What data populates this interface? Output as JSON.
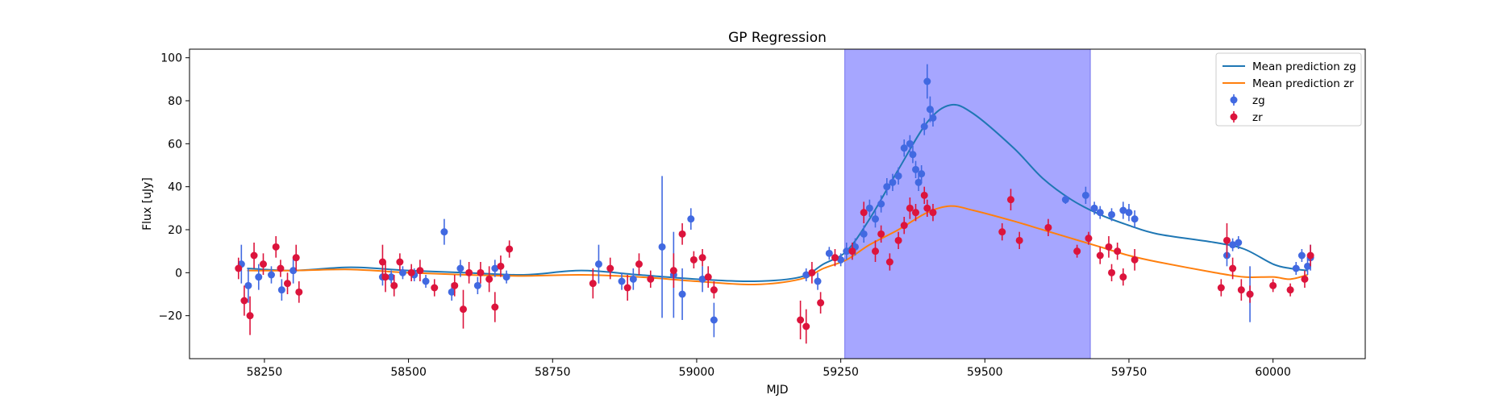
{
  "chart_data": {
    "type": "scatter",
    "title": "GP Regression",
    "xlabel": "MJD",
    "ylabel": "Flux [uJy]",
    "xlim": [
      58120,
      60160
    ],
    "ylim": [
      -40,
      104
    ],
    "xticks": [
      58250,
      58500,
      58750,
      59000,
      59250,
      59500,
      59750,
      60000
    ],
    "yticks": [
      -20,
      0,
      20,
      40,
      60,
      80,
      100
    ],
    "grid": false,
    "legend_position": "top-right",
    "shaded_region": {
      "x": [
        59257,
        59683
      ],
      "color": "#a6a6ff"
    },
    "colors": {
      "zg_line": "#1f77b4",
      "zr_line": "#ff7f0e",
      "zg_points": "#4169e1",
      "zr_points": "#dc143c"
    },
    "series": [
      {
        "name": "Mean prediction zg",
        "kind": "line",
        "color": "#1f77b4",
        "x": [
          58220,
          58300,
          58400,
          58500,
          58600,
          58700,
          58800,
          58900,
          59000,
          59100,
          59180,
          59220,
          59260,
          59300,
          59350,
          59400,
          59440,
          59480,
          59550,
          59600,
          59650,
          59700,
          59750,
          59800,
          59900,
          59950,
          60000,
          60030,
          60060
        ],
        "y": [
          2,
          1,
          2.5,
          1,
          0,
          -1,
          1,
          -1,
          -3,
          -4,
          -2,
          4,
          10,
          25,
          48,
          70,
          78,
          74,
          58,
          44,
          34,
          27,
          22,
          18,
          14,
          11,
          4,
          2,
          1
        ]
      },
      {
        "name": "Mean prediction zr",
        "kind": "line",
        "color": "#ff7f0e",
        "x": [
          58220,
          58300,
          58400,
          58500,
          58600,
          58700,
          58800,
          58900,
          59000,
          59100,
          59180,
          59220,
          59260,
          59300,
          59350,
          59400,
          59440,
          59480,
          59550,
          59600,
          59650,
          59700,
          59750,
          59800,
          59900,
          59950,
          60000,
          60030,
          60060
        ],
        "y": [
          1,
          1,
          1.5,
          0,
          -1,
          -1.5,
          -1,
          -2,
          -4,
          -5.5,
          -3,
          2,
          6,
          13,
          20,
          28,
          31,
          29,
          24,
          20,
          16,
          12,
          8,
          5,
          0,
          -2,
          -2,
          -3,
          -1
        ]
      },
      {
        "name": "zg",
        "kind": "errorbar",
        "color": "#4169e1",
        "x": [
          58210,
          58222,
          58240,
          58262,
          58280,
          58300,
          58455,
          58470,
          58490,
          58510,
          58530,
          58562,
          58575,
          58590,
          58620,
          58650,
          58670,
          58830,
          58870,
          58890,
          58940,
          58960,
          58975,
          58990,
          59010,
          59030,
          59190,
          59210,
          59230,
          59250,
          59260,
          59275,
          59290,
          59300,
          59310,
          59320,
          59330,
          59340,
          59350,
          59360,
          59370,
          59375,
          59380,
          59385,
          59390,
          59395,
          59400,
          59405,
          59410,
          59640,
          59675,
          59690,
          59700,
          59720,
          59740,
          59750,
          59760,
          59920,
          59930,
          59940,
          59960,
          60040,
          60050,
          60060,
          60065
        ],
        "y": [
          4,
          -6,
          -2,
          -1,
          -8,
          1,
          -2,
          -2,
          0,
          -1,
          -4,
          19,
          -9,
          2,
          -6,
          2,
          -2,
          4,
          -4,
          -3,
          12,
          -1,
          -10,
          25,
          -3,
          -22,
          -1,
          -4,
          9,
          6,
          10,
          12,
          18,
          30,
          25,
          32,
          40,
          42,
          45,
          58,
          60,
          55,
          48,
          42,
          46,
          68,
          89,
          76,
          72,
          34,
          36,
          30,
          28,
          27,
          29,
          28,
          25,
          8,
          13,
          14,
          -10,
          2,
          8,
          3,
          7
        ],
        "err": [
          9,
          8,
          6,
          4,
          5,
          6,
          4,
          3,
          3,
          3,
          3,
          6,
          4,
          4,
          4,
          4,
          3,
          9,
          4,
          5,
          33,
          20,
          12,
          5,
          6,
          8,
          3,
          4,
          3,
          3,
          4,
          4,
          4,
          4,
          4,
          4,
          4,
          4,
          4,
          4,
          4,
          4,
          4,
          4,
          4,
          4,
          8,
          6,
          4,
          2,
          4,
          3,
          3,
          3,
          4,
          4,
          4,
          5,
          3,
          3,
          13,
          3,
          3,
          4,
          6
        ]
      },
      {
        "name": "zr",
        "kind": "errorbar",
        "color": "#dc143c",
        "x": [
          58205,
          58215,
          58225,
          58232,
          58248,
          58270,
          58278,
          58290,
          58305,
          58310,
          58455,
          58460,
          58475,
          58485,
          58505,
          58520,
          58545,
          58580,
          58595,
          58605,
          58625,
          58640,
          58650,
          58660,
          58675,
          58820,
          58850,
          58880,
          58900,
          58920,
          58960,
          58975,
          58995,
          59010,
          59020,
          59030,
          59180,
          59190,
          59200,
          59215,
          59240,
          59270,
          59290,
          59310,
          59320,
          59335,
          59350,
          59360,
          59370,
          59380,
          59395,
          59400,
          59410,
          59530,
          59545,
          59560,
          59610,
          59660,
          59680,
          59700,
          59715,
          59720,
          59730,
          59740,
          59760,
          59910,
          59920,
          59930,
          59945,
          59960,
          60000,
          60030,
          60055,
          60065
        ],
        "y": [
          2,
          -13,
          -20,
          8,
          4,
          12,
          2,
          -5,
          7,
          -9,
          5,
          -2,
          -6,
          5,
          0,
          1,
          -7,
          -6,
          -17,
          0,
          0,
          -3,
          -16,
          3,
          11,
          -5,
          2,
          -7,
          4,
          -3,
          1,
          18,
          6,
          7,
          -2,
          -8,
          -22,
          -25,
          0,
          -14,
          7,
          10,
          28,
          10,
          18,
          5,
          15,
          22,
          30,
          28,
          36,
          30,
          28,
          19,
          34,
          15,
          21,
          10,
          16,
          8,
          12,
          0,
          10,
          -2,
          6,
          -7,
          15,
          2,
          -8,
          -10,
          -6,
          -8,
          -3,
          8
        ],
        "err": [
          5,
          7,
          9,
          6,
          5,
          5,
          4,
          5,
          6,
          5,
          8,
          7,
          5,
          4,
          4,
          5,
          4,
          5,
          9,
          5,
          5,
          6,
          7,
          5,
          4,
          7,
          5,
          6,
          5,
          4,
          8,
          5,
          4,
          4,
          5,
          4,
          9,
          8,
          5,
          5,
          4,
          4,
          5,
          5,
          4,
          4,
          4,
          4,
          5,
          4,
          4,
          4,
          4,
          4,
          5,
          4,
          4,
          3,
          3,
          4,
          5,
          4,
          4,
          4,
          5,
          4,
          8,
          5,
          5,
          4,
          3,
          3,
          4,
          5
        ]
      }
    ]
  }
}
